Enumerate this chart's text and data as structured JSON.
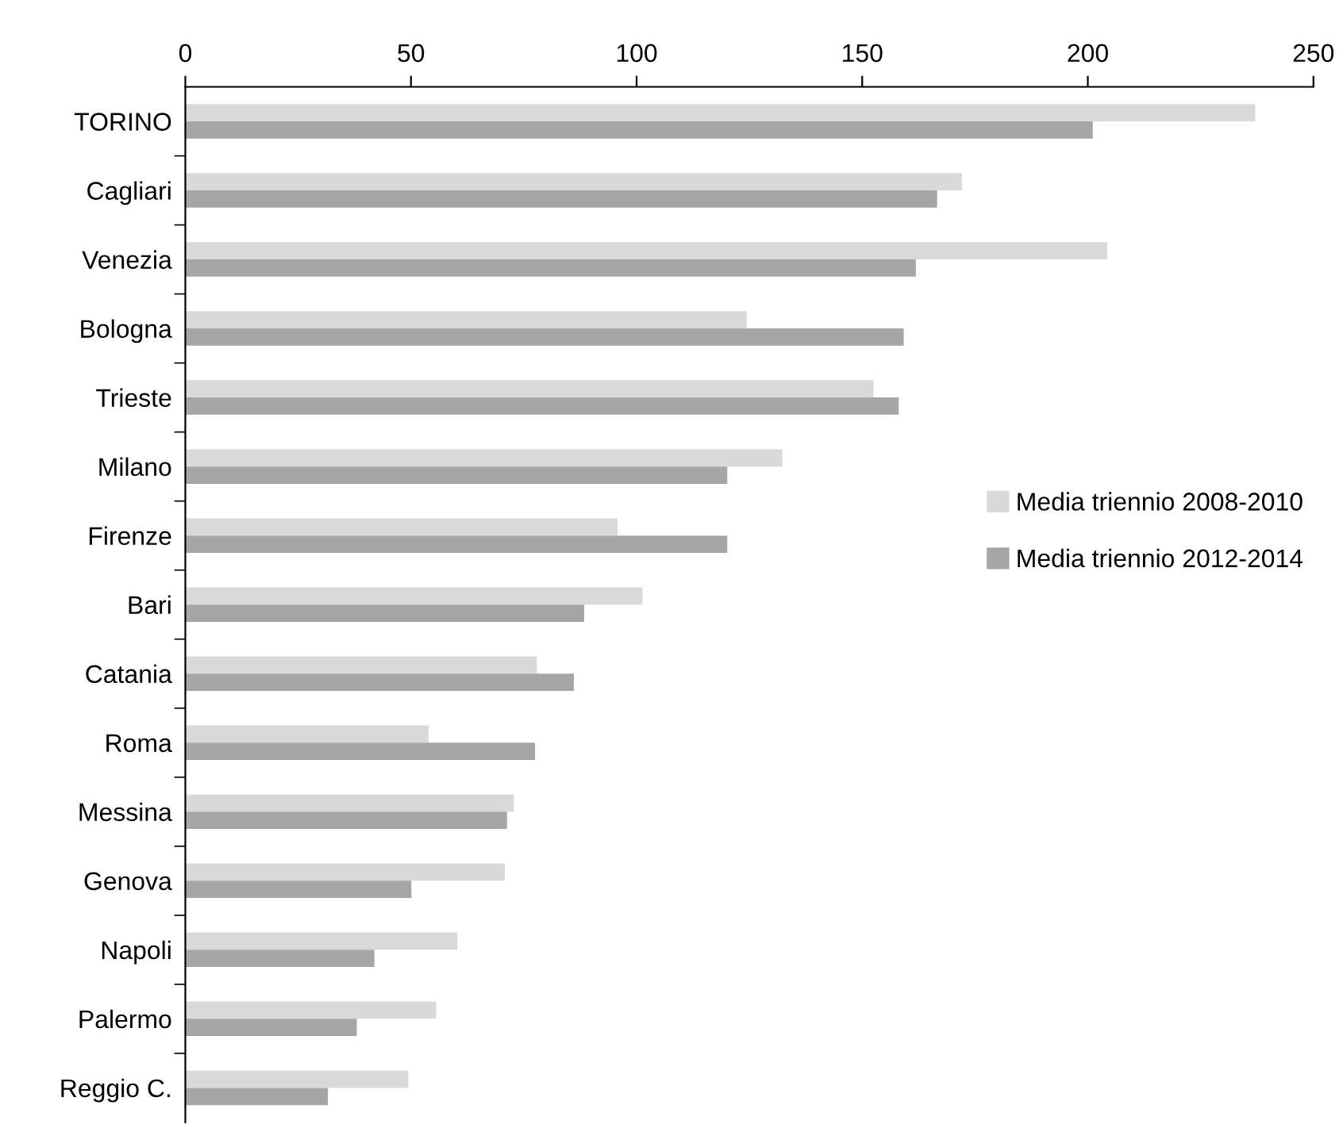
{
  "chart_data": {
    "type": "bar",
    "orientation": "horizontal",
    "categories": [
      "TORINO",
      "Cagliari",
      "Venezia",
      "Bologna",
      "Trieste",
      "Milano",
      "Firenze",
      "Bari",
      "Catania",
      "Roma",
      "Messina",
      "Genova",
      "Napoli",
      "Palermo",
      "Reggio C."
    ],
    "series": [
      {
        "name": "Media triennio 2008-2010",
        "color": "#d9d9d9",
        "values": [
          237.1,
          172.1,
          204.3,
          124.4,
          152.5,
          132.3,
          95.8,
          101.3,
          77.9,
          53.9,
          72.8,
          70.8,
          60.3,
          55.6,
          49.4
        ]
      },
      {
        "name": "Media triennio 2012-2014",
        "color": "#a6a6a6",
        "values": [
          201.1,
          166.6,
          161.9,
          159.2,
          158.1,
          120.1,
          120.1,
          88.4,
          86.1,
          77.5,
          71.3,
          50.1,
          41.9,
          38.0,
          31.6
        ]
      }
    ],
    "xlim": [
      0,
      250
    ],
    "xticks": [
      0,
      50,
      100,
      150,
      200,
      250
    ],
    "grid": false,
    "legend": "right"
  }
}
